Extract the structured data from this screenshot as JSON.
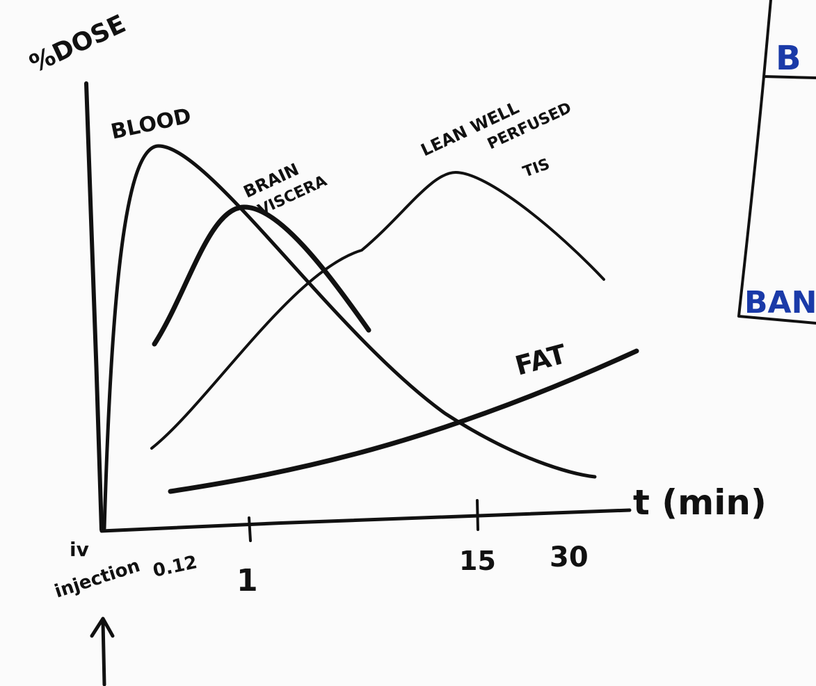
{
  "axes": {
    "y_label": "%DOSE",
    "x_label": "t (min)",
    "origin_label": [
      "iv",
      "injection"
    ],
    "x_ticks": [
      "0.12",
      "1",
      "15",
      "30"
    ]
  },
  "curves": [
    {
      "label": [
        "BLOOD"
      ]
    },
    {
      "label": [
        "BRAIN",
        "VISCERA"
      ]
    },
    {
      "label": [
        "LEAN WELL",
        "PERFUSED",
        "TIS"
      ]
    },
    {
      "label": [
        "FAT"
      ]
    }
  ],
  "side_box": {
    "top_label": "B",
    "bottom_label": "BAN"
  }
}
